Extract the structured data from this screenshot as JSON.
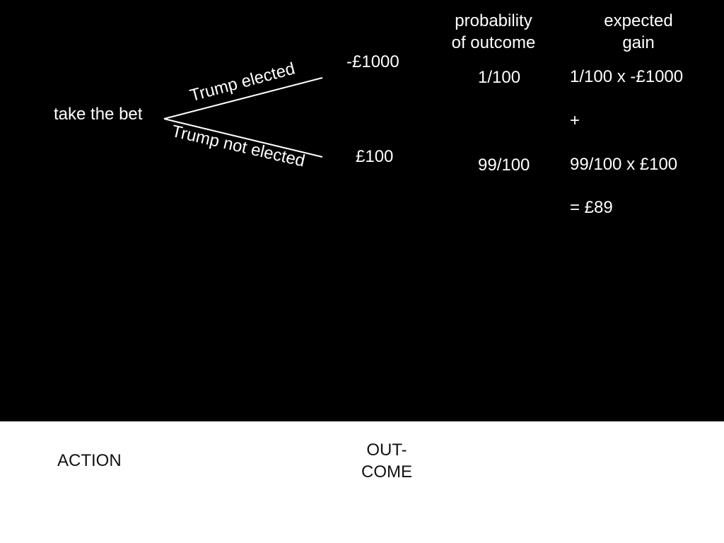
{
  "diagram": {
    "action_label": "take the bet",
    "branches": [
      {
        "label": "Trump elected",
        "outcome": "-£1000",
        "probability": "1/100",
        "gain_expression": "1/100 x -£1000"
      },
      {
        "label": "Trump not elected",
        "outcome": "£100",
        "probability": "99/100",
        "gain_expression": "99/100 x £100"
      }
    ],
    "probability_header": [
      "probability",
      "of outcome"
    ],
    "gain_header": [
      "expected",
      "gain"
    ],
    "plus_sign": "+",
    "total": "= £89"
  },
  "footer": {
    "action_heading": "ACTION",
    "outcome_heading": [
      "OUT-",
      "COME"
    ]
  },
  "colors": {
    "background": "#000000",
    "foreground": "#ffffff",
    "footer_background": "#ffffff",
    "footer_text": "#111111"
  }
}
